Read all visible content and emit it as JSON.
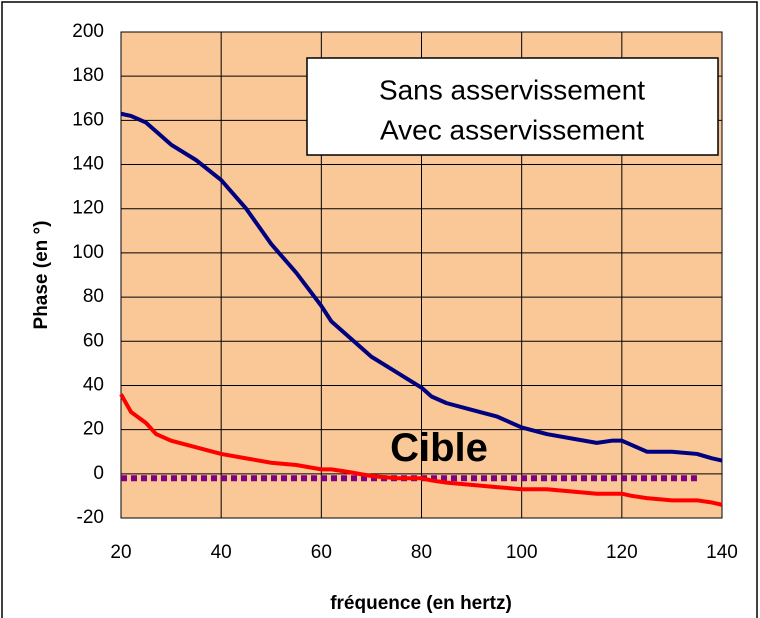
{
  "chart_data": {
    "type": "line",
    "xlabel": "fréquence (en hertz)",
    "ylabel": "Phase (en °)",
    "x": [
      20,
      22,
      25,
      27,
      30,
      35,
      40,
      45,
      50,
      55,
      60,
      62,
      65,
      70,
      75,
      80,
      82,
      85,
      90,
      95,
      100,
      105,
      110,
      115,
      118,
      120,
      122,
      125,
      130,
      135,
      138,
      140
    ],
    "series": [
      {
        "name": "Sans asservissement",
        "color": "#000080",
        "values": [
          163,
          162,
          159,
          155,
          149,
          142,
          133,
          120,
          104,
          91,
          76,
          69,
          63,
          53,
          46,
          39,
          35,
          32,
          29,
          26,
          21,
          18,
          16,
          14,
          15,
          15,
          13,
          10,
          10,
          9,
          7,
          6
        ]
      },
      {
        "name": "Avec asservissement",
        "color": "#ff0000",
        "values": [
          36,
          28,
          23,
          18,
          15,
          12,
          9,
          7,
          5,
          4,
          2,
          2,
          1,
          -1,
          -2,
          -2,
          -3,
          -4,
          -5,
          -6,
          -7,
          -7,
          -8,
          -9,
          -9,
          -9,
          -10,
          -11,
          -12,
          -12,
          -13,
          -14
        ]
      }
    ],
    "target": {
      "label": "Cible",
      "value": -2,
      "x": [
        20,
        135
      ],
      "color": "#800080"
    },
    "xlim": [
      20,
      140
    ],
    "xticks": [
      20,
      40,
      60,
      80,
      100,
      120,
      140
    ],
    "ylim": [
      -20,
      200
    ],
    "yticks": [
      -20,
      0,
      20,
      40,
      60,
      80,
      100,
      120,
      140,
      160,
      180,
      200
    ],
    "grid": true,
    "background": "#fac896",
    "legend": "upper right"
  }
}
